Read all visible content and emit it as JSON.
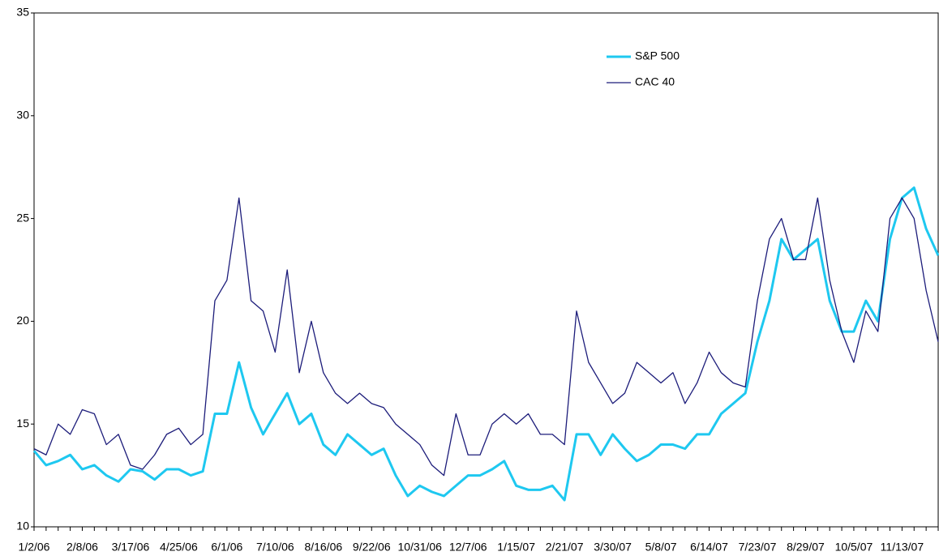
{
  "chart_data": {
    "type": "line",
    "categories": [
      "1/2/06",
      null,
      null,
      null,
      "2/8/06",
      null,
      null,
      null,
      "3/17/06",
      null,
      null,
      null,
      "4/25/06",
      null,
      null,
      null,
      "6/1/06",
      null,
      null,
      null,
      "7/10/06",
      null,
      null,
      null,
      "8/16/06",
      null,
      null,
      null,
      "9/22/06",
      null,
      null,
      null,
      "10/31/06",
      null,
      null,
      null,
      "12/7/06",
      null,
      null,
      null,
      "1/15/07",
      null,
      null,
      null,
      "2/21/07",
      null,
      null,
      null,
      "3/30/07",
      null,
      null,
      null,
      "5/8/07",
      null,
      null,
      null,
      "6/14/07",
      null,
      null,
      null,
      "7/23/07",
      null,
      null,
      null,
      "8/29/07",
      null,
      null,
      null,
      "10/5/07",
      null,
      null,
      null,
      "11/13/07",
      null,
      null,
      null
    ],
    "series": [
      {
        "name": "S&P 500",
        "color": "#1ec8f0",
        "values": [
          13.7,
          13.0,
          13.2,
          13.5,
          12.8,
          13.0,
          12.5,
          12.2,
          12.8,
          12.7,
          12.3,
          12.8,
          12.8,
          12.5,
          12.7,
          15.5,
          15.5,
          18.0,
          15.8,
          14.5,
          15.5,
          16.5,
          15.0,
          15.5,
          14.0,
          13.5,
          14.5,
          14.0,
          13.5,
          13.8,
          12.5,
          11.5,
          12.0,
          11.7,
          11.5,
          12.0,
          12.5,
          12.5,
          12.8,
          13.2,
          12.0,
          11.8,
          11.8,
          12.0,
          11.3,
          14.5,
          14.5,
          13.5,
          14.5,
          13.8,
          13.2,
          13.5,
          14.0,
          14.0,
          13.8,
          14.5,
          14.5,
          15.5,
          16.0,
          16.5,
          19.0,
          21.0,
          24.0,
          23.0,
          23.5,
          24.0,
          21.0,
          19.5,
          19.5,
          21.0,
          20.0,
          24.0,
          26.0,
          26.5,
          24.5,
          23.2
        ]
      },
      {
        "name": "CAC 40",
        "color": "#1c1c7a",
        "values": [
          13.8,
          13.5,
          15.0,
          14.5,
          15.7,
          15.5,
          14.0,
          14.5,
          13.0,
          12.8,
          13.5,
          14.5,
          14.8,
          14.0,
          14.5,
          21.0,
          22.0,
          26.0,
          21.0,
          20.5,
          18.5,
          22.5,
          17.5,
          20.0,
          17.5,
          16.5,
          16.0,
          16.5,
          16.0,
          15.8,
          15.0,
          14.5,
          14.0,
          13.0,
          12.5,
          15.5,
          13.5,
          13.5,
          15.0,
          15.5,
          15.0,
          15.5,
          14.5,
          14.5,
          14.0,
          20.5,
          18.0,
          17.0,
          16.0,
          16.5,
          18.0,
          17.5,
          17.0,
          17.5,
          16.0,
          17.0,
          18.5,
          17.5,
          17.0,
          16.8,
          21.0,
          24.0,
          25.0,
          23.0,
          23.0,
          26.0,
          22.0,
          19.5,
          18.0,
          20.5,
          19.5,
          25.0,
          26.0,
          25.0,
          21.5,
          19.0
        ]
      }
    ],
    "ylim": [
      10,
      35
    ],
    "yticks": [
      10,
      15,
      20,
      25,
      30,
      35
    ],
    "grid": false
  }
}
